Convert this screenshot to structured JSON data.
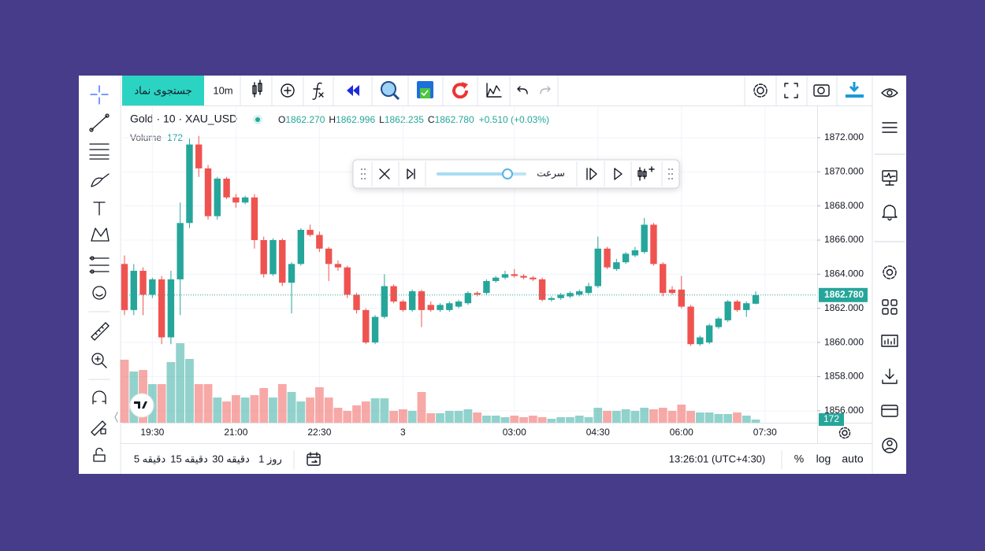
{
  "toolbar": {
    "search": "جستجوی نماد",
    "interval": "10m"
  },
  "legend": {
    "symbol": "Gold · 10 · XAU_USD",
    "ohlc": [
      {
        "label": "O",
        "value": "1862.270"
      },
      {
        "label": "H",
        "value": "1862.996"
      },
      {
        "label": "L",
        "value": "1862.235"
      },
      {
        "label": "C",
        "value": "1862.780"
      }
    ],
    "change": "+0.510 (+0.03%)",
    "volume_label": "Volume"
  },
  "replay": {
    "speed": "سرعت"
  },
  "chart_data": {
    "type": "candlestick",
    "categories": [
      null,
      null,
      null,
      "19:30",
      null,
      null,
      null,
      null,
      null,
      null,
      null,
      null,
      "21:00",
      null,
      null,
      null,
      null,
      null,
      null,
      null,
      null,
      "22:30",
      null,
      null,
      null,
      null,
      null,
      null,
      null,
      null,
      "3",
      null,
      null,
      null,
      null,
      null,
      null,
      null,
      null,
      null,
      null,
      null,
      "03:00",
      null,
      null,
      null,
      null,
      null,
      null,
      null,
      null,
      "04:30",
      null,
      null,
      null,
      null,
      null,
      null,
      null,
      null,
      "06:00",
      null,
      null,
      null,
      null,
      null,
      null,
      null,
      null,
      "07:30"
    ],
    "open": [
      1864.6,
      1861.9,
      1864.2,
      1862.8,
      1863.7,
      1860.3,
      1863.7,
      1867.0,
      1871.6,
      1870.2,
      1867.4,
      1869.6,
      1868.5,
      1868.2,
      1868.5,
      1866.0,
      1864.0,
      1866.0,
      1863.5,
      1864.6,
      1866.6,
      1866.3,
      1865.5,
      1864.6,
      1864.4,
      1862.8,
      1861.9,
      1860.0,
      1861.5,
      1863.3,
      1862.4,
      1861.9,
      1863.0,
      1862.2,
      1861.9,
      1861.9,
      1862.1,
      1862.3,
      1862.9,
      1862.9,
      1863.6,
      1863.8,
      1864.0,
      1863.9,
      1863.8,
      1863.7,
      1862.5,
      1862.6,
      1862.7,
      1862.8,
      1862.9,
      1863.3,
      1865.5,
      1864.3,
      1864.7,
      1865.1,
      1865.3,
      1866.9,
      1864.6,
      1863.1,
      1863.1,
      1862.1,
      1859.9,
      1860.0,
      1860.9,
      1861.3,
      1862.4,
      1861.9,
      1862.27,
      null
    ],
    "high": [
      1865.1,
      1864.6,
      1864.4,
      1863.8,
      1863.9,
      1864.2,
      1868.2,
      1871.95,
      1872.1,
      1870.4,
      1869.7,
      1869.7,
      1868.7,
      1868.6,
      1868.7,
      1866.2,
      1866.1,
      1866.1,
      1864.7,
      1866.7,
      1866.9,
      1866.5,
      1865.6,
      1864.8,
      1864.5,
      1862.9,
      1862.0,
      1861.6,
      1864.0,
      1863.4,
      1862.5,
      1863.1,
      1863.1,
      1862.4,
      1862.3,
      1862.4,
      1862.5,
      1863.0,
      1863.0,
      1863.7,
      1863.9,
      1864.2,
      1864.3,
      1864.0,
      1863.9,
      1863.8,
      1862.7,
      1862.9,
      1863.0,
      1863.1,
      1863.5,
      1866.2,
      1865.6,
      1864.9,
      1865.3,
      1865.6,
      1867.3,
      1867.0,
      1864.7,
      1863.3,
      1863.9,
      1862.2,
      1860.4,
      1861.1,
      1861.5,
      1862.5,
      1862.5,
      1862.4,
      1862.996,
      null
    ],
    "low": [
      1861.6,
      1861.6,
      1861.6,
      1862.6,
      1859.9,
      1859.9,
      1861.6,
      1866.7,
      1869.7,
      1867.2,
      1867.2,
      1868.4,
      1867.9,
      1868.1,
      1865.5,
      1863.8,
      1863.9,
      1863.3,
      1861.7,
      1864.5,
      1866.2,
      1865.3,
      1863.6,
      1864.2,
      1862.6,
      1861.7,
      1859.9,
      1859.9,
      1861.4,
      1862.3,
      1861.8,
      1861.8,
      1860.9,
      1861.8,
      1861.8,
      1861.8,
      1862.0,
      1862.2,
      1862.7,
      1862.8,
      1863.5,
      1863.7,
      1863.8,
      1863.7,
      1863.6,
      1862.4,
      1862.4,
      1862.5,
      1862.6,
      1862.7,
      1862.8,
      1863.2,
      1864.3,
      1864.2,
      1864.6,
      1865.0,
      1865.2,
      1864.5,
      1862.7,
      1862.8,
      1862.0,
      1859.8,
      1859.8,
      1859.9,
      1860.8,
      1861.2,
      1861.8,
      1861.5,
      1862.235,
      null
    ],
    "close": [
      1861.9,
      1864.2,
      1862.8,
      1863.7,
      1860.3,
      1863.7,
      1867.0,
      1871.6,
      1870.2,
      1867.4,
      1869.6,
      1868.5,
      1868.2,
      1868.5,
      1866.0,
      1864.0,
      1866.0,
      1863.5,
      1864.6,
      1866.6,
      1866.3,
      1865.5,
      1864.6,
      1864.4,
      1862.8,
      1861.9,
      1860.0,
      1861.5,
      1863.3,
      1862.4,
      1861.9,
      1863.0,
      1861.9,
      1861.9,
      1862.2,
      1862.3,
      1862.4,
      1862.9,
      1862.8,
      1863.6,
      1863.8,
      1864.0,
      1863.9,
      1863.8,
      1863.7,
      1862.5,
      1862.6,
      1862.8,
      1862.9,
      1863.0,
      1863.3,
      1865.5,
      1864.4,
      1864.7,
      1865.2,
      1865.4,
      1866.9,
      1864.6,
      1862.9,
      1862.9,
      1862.1,
      1859.9,
      1860.3,
      1861.0,
      1861.4,
      1862.4,
      1861.9,
      1862.3,
      1862.78,
      null
    ],
    "volume": [
      3440,
      2795,
      2881,
      2107,
      2107,
      3311,
      4343,
      3483,
      2107,
      2107,
      1376,
      1161,
      1505,
      1376,
      1505,
      1892,
      1376,
      2107,
      1677,
      1161,
      1376,
      1935,
      1376,
      817,
      645,
      946,
      1161,
      1333,
      1333,
      645,
      731,
      645,
      1677,
      516,
      516,
      645,
      645,
      731,
      559,
      387,
      387,
      301,
      387,
      301,
      387,
      301,
      215,
      301,
      301,
      387,
      301,
      817,
      645,
      645,
      731,
      645,
      817,
      731,
      817,
      645,
      989,
      645,
      559,
      559,
      473,
      473,
      559,
      387,
      172,
      null
    ],
    "ylim": [
      1855.3,
      1873.84
    ],
    "yticks": [
      {
        "value": 1856,
        "label": "1856.000"
      },
      {
        "value": 1858,
        "label": "1858.000"
      },
      {
        "value": 1860,
        "label": "1860.000"
      },
      {
        "value": 1862,
        "label": "1862.000"
      },
      {
        "value": 1864,
        "label": "1864.000"
      },
      {
        "value": 1866,
        "label": "1866.000"
      },
      {
        "value": 1868,
        "label": "1868.000"
      },
      {
        "value": 1870,
        "label": "1870.000"
      },
      {
        "value": 1872,
        "label": "1872.000"
      }
    ],
    "last_price_label": "1862.780",
    "grid": true,
    "up_color": "#26a69a",
    "down_color": "#ef5350"
  },
  "bottom_bar": {
    "intervals": [
      "5 دقیقه",
      "15 دقیقه",
      "30 دقیقه",
      "1 روز"
    ],
    "clock": "13:26:01 (UTC+4:30)",
    "percent": "%",
    "log": "log",
    "auto": "auto"
  }
}
